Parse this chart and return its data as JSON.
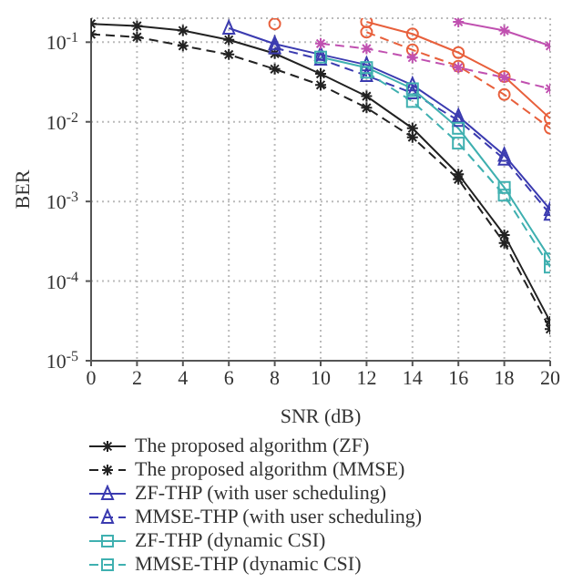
{
  "chart_data": {
    "type": "line",
    "xlabel": "SNR (dB)",
    "ylabel": "BER",
    "x": [
      0,
      2,
      4,
      6,
      8,
      10,
      12,
      14,
      16,
      18,
      20
    ],
    "log": true,
    "grid": true,
    "legend": "bottom",
    "xlim": [
      0,
      20
    ],
    "xticks": [
      0,
      2,
      4,
      6,
      8,
      10,
      12,
      14,
      16,
      18,
      20
    ],
    "ylim": [
      1e-05,
      0.2
    ],
    "yticks": [
      {
        "value": 1e-05,
        "label": "10$^{-5}$"
      },
      {
        "value": 0.0001,
        "label": "10$^{-4}$"
      },
      {
        "value": 0.001,
        "label": "10$^{-3}$"
      },
      {
        "value": 0.01,
        "label": "10$^{-2}$"
      },
      {
        "value": 0.1,
        "label": "10$^{-1}$"
      }
    ],
    "series": [
      {
        "name": "The proposed algorithm (ZF)",
        "color": "#222222",
        "marker": "cross",
        "line_style": "solid",
        "values": [
          0.17,
          0.16,
          0.14,
          0.107,
          0.072,
          0.04,
          0.021,
          0.0083,
          0.0022,
          0.00038,
          3.1e-05
        ]
      },
      {
        "name": "The proposed algorithm (MMSE)",
        "color": "#222222",
        "marker": "cross",
        "line_style": "dashed",
        "values": [
          0.126,
          0.116,
          0.09,
          0.07,
          0.046,
          0.029,
          0.015,
          0.0064,
          0.0019,
          0.0003,
          2.5e-05
        ]
      },
      {
        "name": "ZF-THP (with user scheduling)",
        "color": "#3b3bb0",
        "marker": "triangle",
        "line_style": "solid",
        "values": [
          null,
          null,
          null,
          0.15,
          0.095,
          0.07,
          0.052,
          0.029,
          0.0117,
          0.0038,
          0.00079
        ]
      },
      {
        "name": "MMSE-THP (with user scheduling)",
        "color": "#3b3bb0",
        "marker": "triangle",
        "line_style": "dashed",
        "values": [
          null,
          null,
          null,
          null,
          0.085,
          0.061,
          0.038,
          0.023,
          0.0104,
          0.0034,
          0.00069
        ]
      },
      {
        "name": "ZF-THP (dynamic CSI)",
        "color": "#3fb0b0",
        "marker": "square",
        "line_style": "solid",
        "values": [
          null,
          null,
          null,
          null,
          null,
          0.065,
          0.048,
          0.026,
          0.0083,
          0.0015,
          0.00019
        ]
      },
      {
        "name": "MMSE-THP (dynamic CSI)",
        "color": "#3fb0b0",
        "marker": "square",
        "line_style": "dashed",
        "values": [
          null,
          null,
          null,
          null,
          null,
          null,
          0.042,
          0.018,
          0.0054,
          0.0012,
          0.00015
        ]
      },
      {
        "color": "#e8603c",
        "marker": "circle",
        "line_style": "solid",
        "values": [
          null,
          null,
          null,
          null,
          0.17,
          null,
          0.18,
          0.127,
          0.074,
          0.037,
          0.011
        ]
      },
      {
        "color": "#e8603c",
        "marker": "circle",
        "line_style": "dashed",
        "values": [
          null,
          null,
          null,
          null,
          null,
          null,
          0.134,
          0.08,
          0.05,
          0.022,
          0.0083
        ]
      },
      {
        "color": "#c050b0",
        "marker": "cross",
        "line_style": "solid",
        "values": [
          null,
          null,
          null,
          null,
          null,
          null,
          null,
          null,
          0.18,
          0.14,
          0.09
        ]
      },
      {
        "color": "#c050b0",
        "marker": "cross",
        "line_style": "dashed",
        "values": [
          null,
          null,
          null,
          null,
          null,
          0.096,
          0.083,
          0.064,
          0.048,
          0.036,
          0.026
        ]
      }
    ]
  }
}
